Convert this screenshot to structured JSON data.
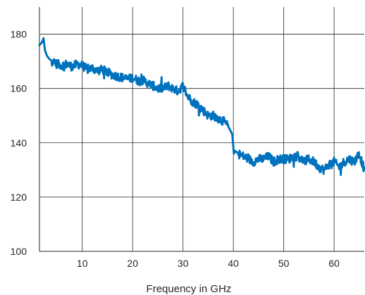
{
  "chart_data": {
    "type": "line",
    "title": "",
    "xlabel": "Frequency in GHz",
    "ylabel": "",
    "xlim": [
      1.5,
      66
    ],
    "ylim": [
      100,
      190
    ],
    "xticks": [
      10,
      20,
      30,
      40,
      50,
      60
    ],
    "yticks": [
      100,
      120,
      140,
      160,
      180
    ],
    "xtick_labels": [
      "10",
      "20",
      "30",
      "40",
      "50",
      "60"
    ],
    "ytick_labels": [
      "100",
      "120",
      "140",
      "160",
      "180"
    ],
    "grid": true,
    "legend": "none",
    "series": [
      {
        "color": "#0072BD",
        "x": [
          1.5,
          2,
          2.3,
          2.6,
          3,
          3.4,
          4,
          5,
          6,
          7,
          8,
          9,
          10,
          11,
          12,
          13,
          14,
          15,
          16,
          17,
          18,
          19,
          20,
          21,
          22,
          23,
          24,
          25,
          26,
          27,
          28,
          29,
          30,
          31,
          32,
          33,
          34,
          35,
          36,
          37,
          38,
          39,
          39.8,
          40.1,
          40.4,
          41,
          42,
          43,
          44,
          45,
          46,
          47,
          48,
          49,
          50,
          51,
          52,
          53,
          54,
          55,
          56,
          57,
          58,
          59,
          60,
          61,
          62,
          63,
          64,
          65,
          66
        ],
        "y": [
          176,
          177,
          178.5,
          174,
          172,
          171,
          170,
          169,
          168.5,
          169,
          168,
          169,
          168.5,
          167,
          167.5,
          166.5,
          167,
          166,
          165,
          164.5,
          164,
          163.5,
          164,
          163,
          163,
          162,
          161,
          160,
          160,
          161,
          160,
          159,
          161,
          157,
          155,
          154,
          152,
          150,
          150,
          149,
          148,
          146,
          143,
          136,
          137,
          136,
          135,
          134,
          133,
          134,
          134,
          135,
          133,
          134,
          134,
          134,
          135,
          135,
          133,
          134,
          133,
          131,
          130,
          132,
          133,
          131,
          133,
          134,
          133,
          136,
          130
        ]
      }
    ]
  }
}
